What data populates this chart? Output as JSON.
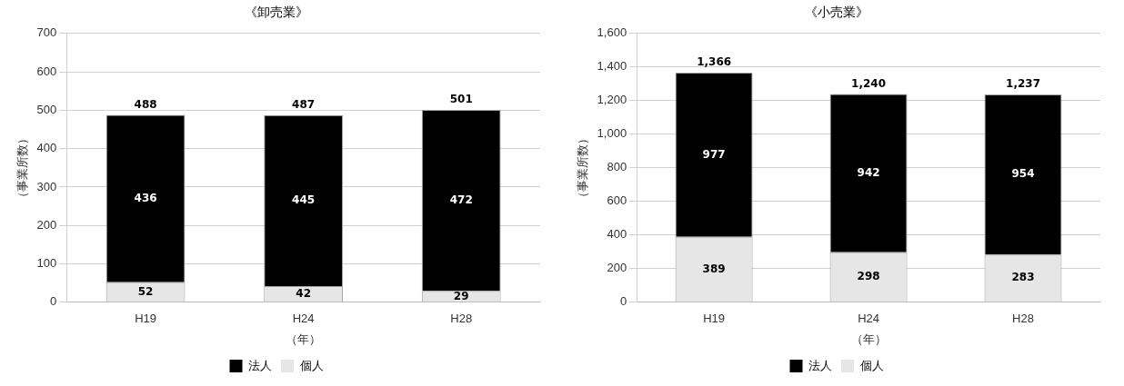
{
  "chart_data": [
    {
      "type": "bar",
      "title": "《卸売業》",
      "xlabel": "（年）",
      "ylabel": "（事業所数）",
      "categories": [
        "H19",
        "H24",
        "H28"
      ],
      "stacked": true,
      "series": [
        {
          "name": "個人",
          "color": "#e6e6e6",
          "values": [
            52,
            42,
            29
          ]
        },
        {
          "name": "法人",
          "color": "#000000",
          "values": [
            436,
            445,
            472
          ]
        }
      ],
      "totals": [
        "488",
        "487",
        "501"
      ],
      "data_labels": true,
      "ylim": [
        0,
        700
      ],
      "yticks": [
        0,
        100,
        200,
        300,
        400,
        500,
        600,
        700
      ],
      "grid": "y",
      "legend": "bottom"
    },
    {
      "type": "bar",
      "title": "《小売業》",
      "xlabel": "（年）",
      "ylabel": "（事業所数）",
      "categories": [
        "H19",
        "H24",
        "H28"
      ],
      "stacked": true,
      "series": [
        {
          "name": "個人",
          "color": "#e6e6e6",
          "values": [
            389,
            298,
            283
          ]
        },
        {
          "name": "法人",
          "color": "#000000",
          "values": [
            977,
            942,
            954
          ]
        }
      ],
      "totals": [
        "1,366",
        "1,240",
        "1,237"
      ],
      "data_labels": true,
      "ylim": [
        0,
        1600
      ],
      "yticks": [
        0,
        200,
        400,
        600,
        800,
        {
          "value": 1000,
          "label": "1,000"
        },
        {
          "value": 1200,
          "label": "1,200"
        },
        {
          "value": 1400,
          "label": "1,400"
        },
        {
          "value": 1600,
          "label": "1,600"
        }
      ],
      "grid": "y",
      "legend": "bottom"
    }
  ]
}
